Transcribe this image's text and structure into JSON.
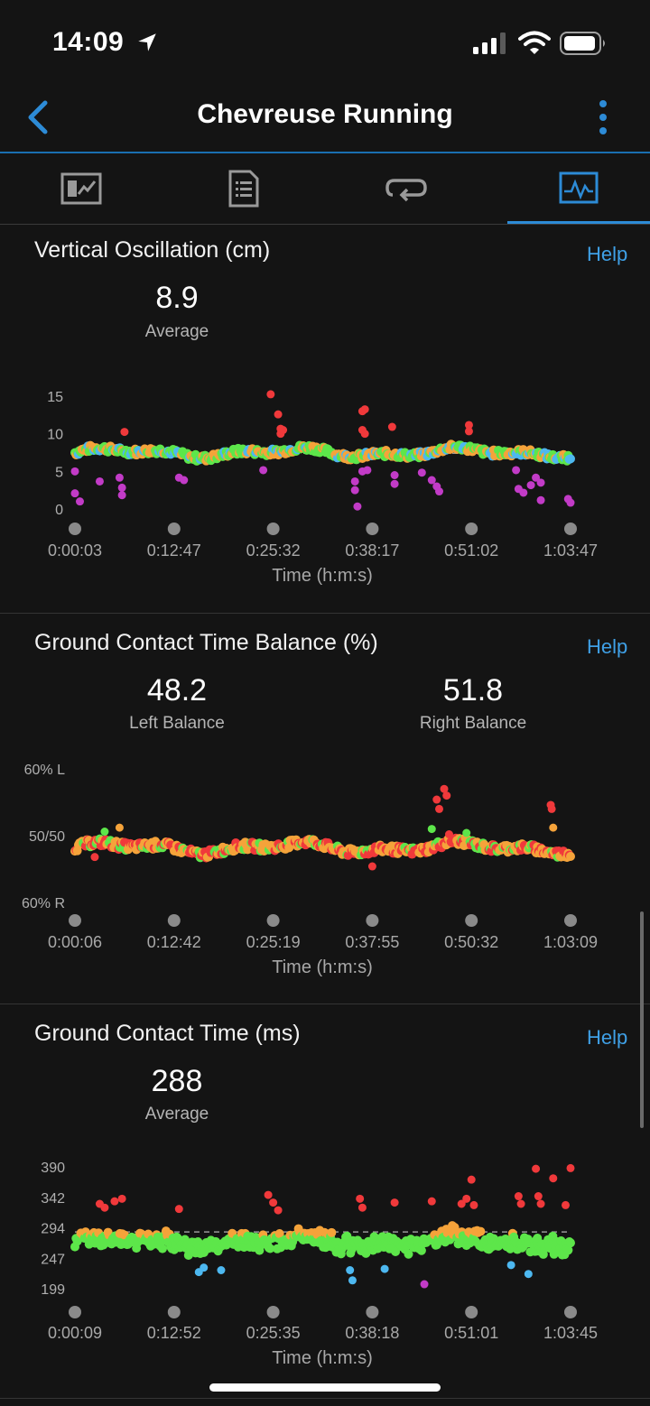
{
  "status_bar": {
    "time": "14:09"
  },
  "nav": {
    "title": "Chevreuse Running"
  },
  "tabs": [
    {
      "icon": "map-stats-icon",
      "active": false
    },
    {
      "icon": "list-document-icon",
      "active": false
    },
    {
      "icon": "laps-loop-icon",
      "active": false
    },
    {
      "icon": "charts-icon",
      "active": true
    }
  ],
  "sections": [
    {
      "title": "Vertical Oscillation (cm)",
      "help": "Help",
      "stats": [
        {
          "value": "8.9",
          "label": "Average"
        }
      ],
      "chart_data": {
        "type": "scatter",
        "y_ticks": [
          "15",
          "10",
          "5",
          "0"
        ],
        "ylim": [
          0,
          18
        ],
        "x_ticks": [
          "0:00:03",
          "0:12:47",
          "0:25:32",
          "0:38:17",
          "0:51:02",
          "1:03:47"
        ],
        "xlabel": "Time (h:m:s)",
        "average_line": 8.9,
        "baseline": 9,
        "colors": [
          "#f5a33a",
          "#5de64a",
          "#4db8f0",
          "#c23bc7",
          "#f0393b"
        ],
        "outliers": [
          {
            "x": 0.0,
            "y": 6,
            "color": "#c23bc7"
          },
          {
            "x": 0.0,
            "y": 2.5,
            "color": "#c23bc7"
          },
          {
            "x": 0.01,
            "y": 1.2,
            "color": "#c23bc7"
          },
          {
            "x": 0.05,
            "y": 4.4,
            "color": "#c23bc7"
          },
          {
            "x": 0.09,
            "y": 5,
            "color": "#c23bc7"
          },
          {
            "x": 0.095,
            "y": 3.4,
            "color": "#c23bc7"
          },
          {
            "x": 0.095,
            "y": 2.2,
            "color": "#c23bc7"
          },
          {
            "x": 0.1,
            "y": 12.3,
            "color": "#f0393b"
          },
          {
            "x": 0.21,
            "y": 5,
            "color": "#c23bc7"
          },
          {
            "x": 0.22,
            "y": 4.6,
            "color": "#c23bc7"
          },
          {
            "x": 0.38,
            "y": 6.2,
            "color": "#c23bc7"
          },
          {
            "x": 0.395,
            "y": 18.3,
            "color": "#f0393b"
          },
          {
            "x": 0.41,
            "y": 15.1,
            "color": "#f0393b"
          },
          {
            "x": 0.415,
            "y": 12.8,
            "color": "#f0393b"
          },
          {
            "x": 0.415,
            "y": 12.0,
            "color": "#f0393b"
          },
          {
            "x": 0.42,
            "y": 12.6,
            "color": "#f0393b"
          },
          {
            "x": 0.565,
            "y": 4.4,
            "color": "#c23bc7"
          },
          {
            "x": 0.565,
            "y": 3.0,
            "color": "#c23bc7"
          },
          {
            "x": 0.57,
            "y": 0.4,
            "color": "#c23bc7"
          },
          {
            "x": 0.58,
            "y": 15.6,
            "color": "#f0393b"
          },
          {
            "x": 0.585,
            "y": 15.9,
            "color": "#f0393b"
          },
          {
            "x": 0.58,
            "y": 12.6,
            "color": "#f0393b"
          },
          {
            "x": 0.585,
            "y": 12.0,
            "color": "#f0393b"
          },
          {
            "x": 0.58,
            "y": 6.0,
            "color": "#c23bc7"
          },
          {
            "x": 0.59,
            "y": 6.2,
            "color": "#c23bc7"
          },
          {
            "x": 0.64,
            "y": 13.1,
            "color": "#f0393b"
          },
          {
            "x": 0.645,
            "y": 5.4,
            "color": "#c23bc7"
          },
          {
            "x": 0.645,
            "y": 4.0,
            "color": "#c23bc7"
          },
          {
            "x": 0.7,
            "y": 5.8,
            "color": "#c23bc7"
          },
          {
            "x": 0.72,
            "y": 4.6,
            "color": "#c23bc7"
          },
          {
            "x": 0.73,
            "y": 3.6,
            "color": "#c23bc7"
          },
          {
            "x": 0.735,
            "y": 2.8,
            "color": "#c23bc7"
          },
          {
            "x": 0.795,
            "y": 13.4,
            "color": "#f0393b"
          },
          {
            "x": 0.795,
            "y": 12.4,
            "color": "#f0393b"
          },
          {
            "x": 0.89,
            "y": 6.2,
            "color": "#c23bc7"
          },
          {
            "x": 0.895,
            "y": 3.2,
            "color": "#c23bc7"
          },
          {
            "x": 0.905,
            "y": 2.6,
            "color": "#c23bc7"
          },
          {
            "x": 0.92,
            "y": 3.8,
            "color": "#c23bc7"
          },
          {
            "x": 0.93,
            "y": 5.0,
            "color": "#c23bc7"
          },
          {
            "x": 0.94,
            "y": 4.2,
            "color": "#c23bc7"
          },
          {
            "x": 0.94,
            "y": 1.4,
            "color": "#c23bc7"
          },
          {
            "x": 0.995,
            "y": 1.6,
            "color": "#c23bc7"
          },
          {
            "x": 1.0,
            "y": 1.0,
            "color": "#c23bc7"
          }
        ]
      }
    },
    {
      "title": "Ground Contact Time Balance (%)",
      "help": "Help",
      "stats": [
        {
          "value": "48.2",
          "label": "Left Balance"
        },
        {
          "value": "51.8",
          "label": "Right Balance"
        }
      ],
      "chart_data": {
        "type": "scatter",
        "y_ticks": [
          "60% L",
          "50/50",
          "60% R"
        ],
        "ylim": [
          -10,
          10
        ],
        "x_ticks": [
          "0:00:06",
          "0:12:42",
          "0:25:19",
          "0:37:55",
          "0:50:32",
          "1:03:09"
        ],
        "xlabel": "Time (h:m:s)",
        "baseline": -1.8,
        "colors": [
          "#f5a33a",
          "#5de64a",
          "#f0393b"
        ],
        "outliers": [
          {
            "x": 0.04,
            "y": -3.2,
            "color": "#f0393b"
          },
          {
            "x": 0.06,
            "y": 0.6,
            "color": "#5de64a"
          },
          {
            "x": 0.09,
            "y": 1.2,
            "color": "#f5a33a"
          },
          {
            "x": 0.6,
            "y": -4.6,
            "color": "#f0393b"
          },
          {
            "x": 0.72,
            "y": 1.0,
            "color": "#5de64a"
          },
          {
            "x": 0.73,
            "y": 5.4,
            "color": "#f0393b"
          },
          {
            "x": 0.735,
            "y": 4.0,
            "color": "#f0393b"
          },
          {
            "x": 0.745,
            "y": 7.0,
            "color": "#f0393b"
          },
          {
            "x": 0.75,
            "y": 6.0,
            "color": "#f0393b"
          },
          {
            "x": 0.755,
            "y": 0.2,
            "color": "#f0393b"
          },
          {
            "x": 0.79,
            "y": 0.4,
            "color": "#5de64a"
          },
          {
            "x": 0.96,
            "y": 4.6,
            "color": "#f0393b"
          },
          {
            "x": 0.962,
            "y": 4.0,
            "color": "#f0393b"
          },
          {
            "x": 0.965,
            "y": 1.2,
            "color": "#f5a33a"
          }
        ]
      }
    },
    {
      "title": "Ground Contact Time (ms)",
      "help": "Help",
      "stats": [
        {
          "value": "288",
          "label": "Average"
        }
      ],
      "chart_data": {
        "type": "scatter",
        "y_ticks": [
          "390",
          "342",
          "294",
          "247",
          "199"
        ],
        "ylim": [
          199,
          390
        ],
        "x_ticks": [
          "0:00:09",
          "0:12:52",
          "0:25:35",
          "0:38:18",
          "0:51:01",
          "1:03:45"
        ],
        "xlabel": "Time (h:m:s)",
        "average_line": 288,
        "baseline": 268,
        "colors": [
          "#f5a33a",
          "#5de64a",
          "#4db8f0",
          "#c23bc7",
          "#f0393b"
        ],
        "outliers": [
          {
            "x": 0.05,
            "y": 332,
            "color": "#f0393b"
          },
          {
            "x": 0.06,
            "y": 326,
            "color": "#f0393b"
          },
          {
            "x": 0.08,
            "y": 336,
            "color": "#f0393b"
          },
          {
            "x": 0.095,
            "y": 340,
            "color": "#f0393b"
          },
          {
            "x": 0.21,
            "y": 324,
            "color": "#f0393b"
          },
          {
            "x": 0.25,
            "y": 225,
            "color": "#4db8f0"
          },
          {
            "x": 0.26,
            "y": 232,
            "color": "#4db8f0"
          },
          {
            "x": 0.295,
            "y": 228,
            "color": "#4db8f0"
          },
          {
            "x": 0.39,
            "y": 346,
            "color": "#f0393b"
          },
          {
            "x": 0.4,
            "y": 334,
            "color": "#f0393b"
          },
          {
            "x": 0.41,
            "y": 322,
            "color": "#f0393b"
          },
          {
            "x": 0.555,
            "y": 228,
            "color": "#4db8f0"
          },
          {
            "x": 0.56,
            "y": 212,
            "color": "#4db8f0"
          },
          {
            "x": 0.575,
            "y": 340,
            "color": "#f0393b"
          },
          {
            "x": 0.58,
            "y": 326,
            "color": "#f0393b"
          },
          {
            "x": 0.625,
            "y": 230,
            "color": "#4db8f0"
          },
          {
            "x": 0.645,
            "y": 334,
            "color": "#f0393b"
          },
          {
            "x": 0.705,
            "y": 206,
            "color": "#c23bc7"
          },
          {
            "x": 0.72,
            "y": 336,
            "color": "#f0393b"
          },
          {
            "x": 0.78,
            "y": 332,
            "color": "#f0393b"
          },
          {
            "x": 0.79,
            "y": 340,
            "color": "#f0393b"
          },
          {
            "x": 0.8,
            "y": 370,
            "color": "#f0393b"
          },
          {
            "x": 0.805,
            "y": 330,
            "color": "#f0393b"
          },
          {
            "x": 0.88,
            "y": 236,
            "color": "#4db8f0"
          },
          {
            "x": 0.895,
            "y": 344,
            "color": "#f0393b"
          },
          {
            "x": 0.9,
            "y": 332,
            "color": "#f0393b"
          },
          {
            "x": 0.915,
            "y": 222,
            "color": "#4db8f0"
          },
          {
            "x": 0.93,
            "y": 387,
            "color": "#f0393b"
          },
          {
            "x": 0.935,
            "y": 344,
            "color": "#f0393b"
          },
          {
            "x": 0.94,
            "y": 332,
            "color": "#f0393b"
          },
          {
            "x": 0.965,
            "y": 372,
            "color": "#f0393b"
          },
          {
            "x": 0.99,
            "y": 330,
            "color": "#f0393b"
          },
          {
            "x": 1.0,
            "y": 388,
            "color": "#f0393b"
          }
        ]
      }
    }
  ]
}
